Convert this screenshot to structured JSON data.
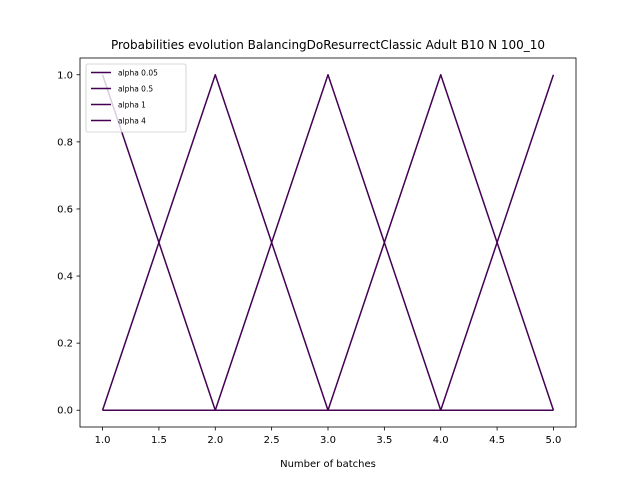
{
  "chart_data": {
    "type": "line",
    "title": "Probabilities evolution BalancingDoResurrectClassic Adult B10 N 100_10",
    "xlabel": "Number of batches",
    "ylabel": "",
    "xlim": [
      0.8,
      5.2
    ],
    "ylim": [
      -0.05,
      1.05
    ],
    "xticks": [
      1.0,
      1.5,
      2.0,
      2.5,
      3.0,
      3.5,
      4.0,
      4.5,
      5.0
    ],
    "xtick_labels": [
      "1.0",
      "1.5",
      "2.0",
      "2.5",
      "3.0",
      "3.5",
      "4.0",
      "4.5",
      "5.0"
    ],
    "yticks": [
      0.0,
      0.2,
      0.4,
      0.6,
      0.8,
      1.0
    ],
    "ytick_labels": [
      "0.0",
      "0.2",
      "0.4",
      "0.6",
      "0.8",
      "1.0"
    ],
    "grid": false,
    "legend_placement": "top-left",
    "line_color": "#440154",
    "x": [
      1,
      2,
      3,
      4,
      5
    ],
    "series": [
      {
        "name": "alpha 0.05",
        "values": [
          1,
          0,
          0,
          0,
          0
        ]
      },
      {
        "name": "alpha 0.5",
        "values": [
          0,
          1,
          0,
          0,
          0
        ]
      },
      {
        "name": "alpha 1",
        "values": [
          0,
          0,
          1,
          0,
          0
        ]
      },
      {
        "name": "alpha 4",
        "values": [
          0,
          0,
          0,
          1,
          0
        ]
      },
      {
        "name": "",
        "values": [
          0,
          0,
          0,
          0,
          1
        ]
      }
    ]
  }
}
